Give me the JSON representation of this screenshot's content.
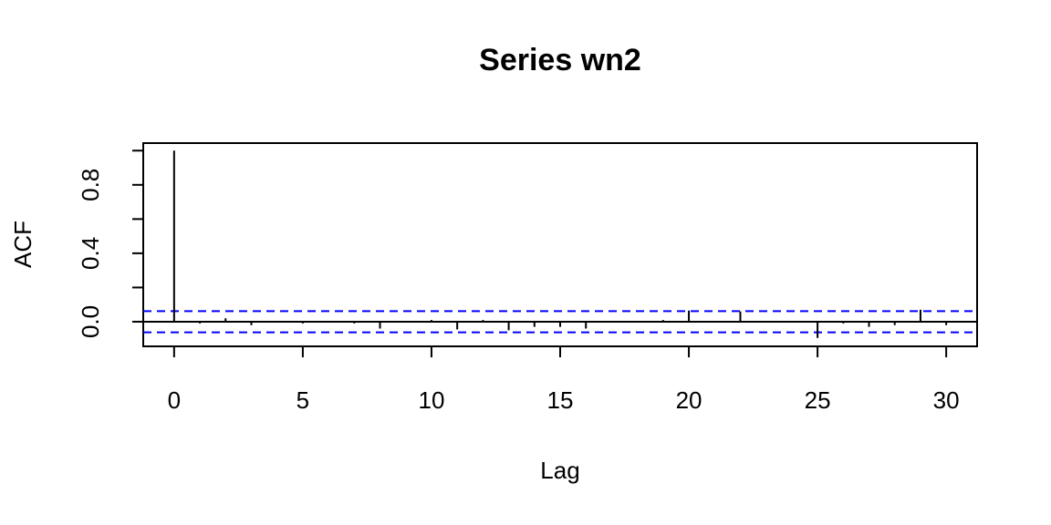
{
  "chart_data": {
    "type": "spike",
    "title": "Series  wn2",
    "x_label": "Lag",
    "y_label": "ACF",
    "x": [
      0,
      1,
      2,
      3,
      4,
      5,
      6,
      7,
      8,
      9,
      10,
      11,
      12,
      13,
      14,
      15,
      16,
      17,
      18,
      19,
      20,
      21,
      22,
      23,
      24,
      25,
      26,
      27,
      28,
      29,
      30
    ],
    "values": [
      1,
      -0.01,
      0.02,
      -0.02,
      0.005,
      -0.01,
      0.005,
      -0.01,
      -0.04,
      0.005,
      0.01,
      -0.045,
      0.01,
      -0.05,
      -0.03,
      -0.03,
      -0.04,
      -0.005,
      0.005,
      0.01,
      0.065,
      0.005,
      0.06,
      -0.005,
      0.005,
      -0.095,
      -0.01,
      -0.03,
      -0.02,
      0.07,
      -0.02
    ],
    "color": "#000000",
    "ci": [
      0.062,
      -0.062
    ],
    "ci_color": "#0000ff",
    "xlim": [
      -1.2,
      31.2
    ],
    "xticks": [
      0,
      5,
      10,
      15,
      20,
      25,
      30
    ],
    "ylim": [
      -0.144,
      1.044
    ],
    "yticks": [
      {
        "value": 0,
        "label": "0.0"
      },
      {
        "value": 0.2,
        "label": null
      },
      {
        "value": 0.4,
        "label": "0.4"
      },
      {
        "value": 0.6,
        "label": null
      },
      {
        "value": 0.8,
        "label": "0.8"
      },
      {
        "value": 1.0,
        "label": null
      }
    ]
  }
}
